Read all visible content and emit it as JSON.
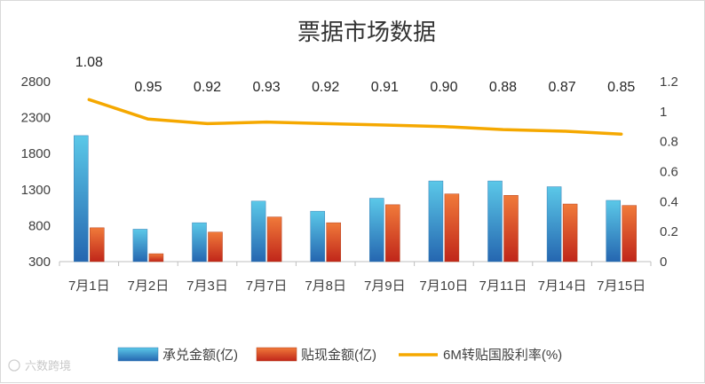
{
  "chart_data": {
    "type": "bar",
    "title": "票据市场数据",
    "categories": [
      "7月1日",
      "7月2日",
      "7月3日",
      "7月7日",
      "7月8日",
      "7月9日",
      "7月10日",
      "7月11日",
      "7月14日",
      "7月15日"
    ],
    "series": [
      {
        "name": "承兑金额(亿)",
        "type": "bar",
        "axis": "left",
        "values": [
          2050,
          750,
          840,
          1140,
          1000,
          1180,
          1420,
          1420,
          1340,
          1150
        ]
      },
      {
        "name": "贴现金额(亿)",
        "type": "bar",
        "axis": "left",
        "values": [
          770,
          410,
          710,
          920,
          840,
          1090,
          1240,
          1220,
          1100,
          1080
        ]
      },
      {
        "name": "6M转贴国股利率(%)",
        "type": "line",
        "axis": "right",
        "values": [
          1.08,
          0.95,
          0.92,
          0.93,
          0.92,
          0.91,
          0.9,
          0.88,
          0.87,
          0.85
        ]
      }
    ],
    "data_labels": [
      "1.08",
      "0.95",
      "0.92",
      "0.93",
      "0.92",
      "0.91",
      "0.90",
      "0.88",
      "0.87",
      "0.85"
    ],
    "y_left": {
      "ticks": [
        "300",
        "800",
        "1300",
        "1800",
        "2300",
        "2800"
      ],
      "ylim": [
        300,
        2800
      ]
    },
    "y_right": {
      "ticks": [
        "0",
        "0.2",
        "0.4",
        "0.6",
        "0.8",
        "1",
        "1.2"
      ],
      "ylim": [
        0,
        1.2
      ]
    },
    "grid": false,
    "legend_position": "bottom",
    "colors": {
      "bar1_top": "#5bc8e8",
      "bar1_bottom": "#2566b0",
      "bar2_top": "#f07a3a",
      "bar2_bottom": "#c0261a",
      "line": "#f5a800"
    }
  },
  "watermark": "六数跨境"
}
